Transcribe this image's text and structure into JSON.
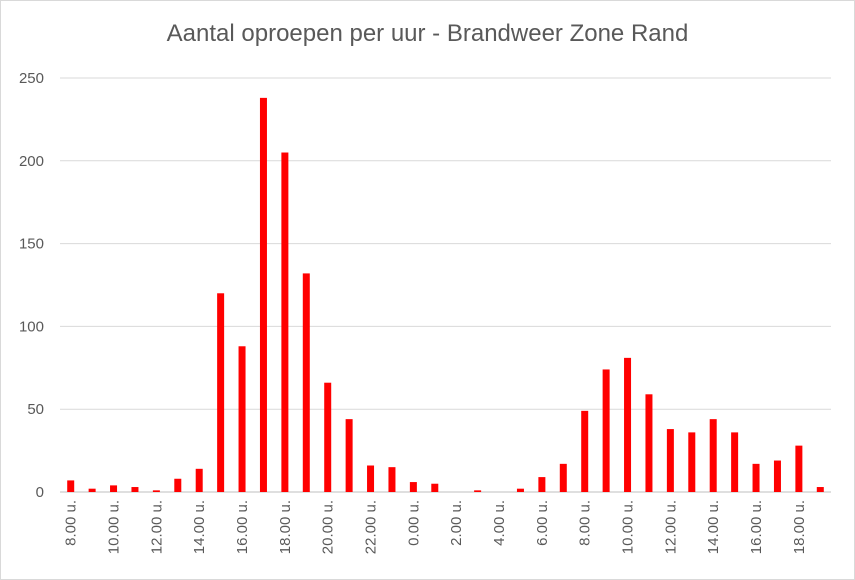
{
  "chart_data": {
    "type": "bar",
    "title": "Aantal oproepen per uur - Brandweer Zone Rand",
    "xlabel": "",
    "ylabel": "",
    "ylim": [
      0,
      250
    ],
    "yticks": [
      0,
      50,
      100,
      150,
      200,
      250
    ],
    "grid": true,
    "legend": "none",
    "color": "#ff0000",
    "categories": [
      "8.00 u.",
      "9.00 u.",
      "10.00 u.",
      "11.00 u.",
      "12.00 u.",
      "13.00 u.",
      "14.00 u.",
      "15.00 u.",
      "16.00 u.",
      "17.00 u.",
      "18.00 u.",
      "19.00 u.",
      "20.00 u.",
      "21.00 u.",
      "22.00 u.",
      "23.00 u.",
      "0.00 u.",
      "1.00 u.",
      "2.00 u.",
      "3.00 u.",
      "4.00 u.",
      "5.00 u.",
      "6.00 u.",
      "7.00 u.",
      "8.00 u.",
      "9.00 u.",
      "10.00 u.",
      "11.00 u.",
      "12.00 u.",
      "13.00 u.",
      "14.00 u.",
      "15.00 u.",
      "16.00 u.",
      "17.00 u.",
      "18.00 u.",
      "19.00 u."
    ],
    "visible_labels": [
      "8.00 u.",
      "10.00 u.",
      "12.00 u.",
      "14.00 u.",
      "16.00 u.",
      "18.00 u.",
      "20.00 u.",
      "22.00 u.",
      "0.00 u.",
      "2.00 u.",
      "4.00 u.",
      "6.00 u.",
      "8.00 u.",
      "10.00 u.",
      "12.00 u.",
      "14.00 u.",
      "16.00 u.",
      "18.00 u."
    ],
    "values": [
      7,
      2,
      4,
      3,
      1,
      8,
      14,
      120,
      88,
      238,
      205,
      132,
      66,
      44,
      16,
      15,
      6,
      5,
      0,
      1,
      0,
      2,
      9,
      17,
      49,
      74,
      81,
      59,
      38,
      36,
      44,
      36,
      17,
      19,
      28,
      3
    ]
  }
}
